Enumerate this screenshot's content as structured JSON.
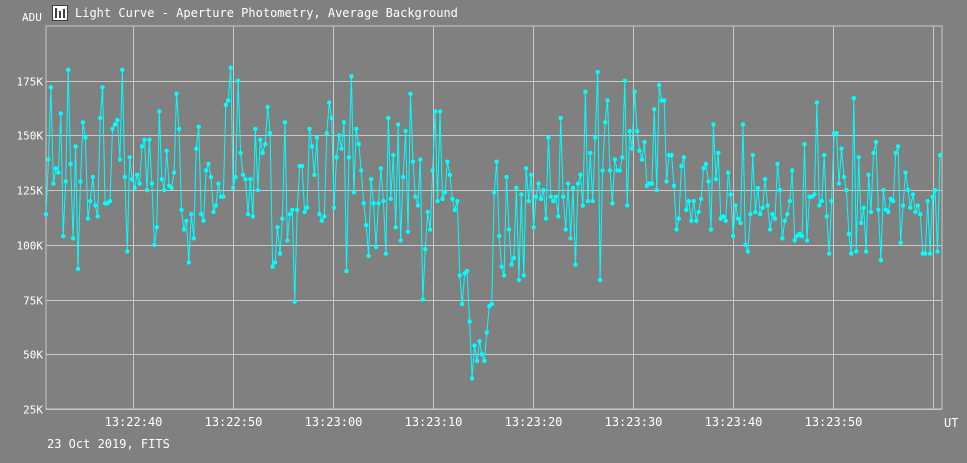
{
  "window": {
    "title": "Light Curve - Aperture Photometry, Average Background",
    "icon": "chart-app-icon"
  },
  "footer": {
    "text": "23 Oct 2019, FITS"
  },
  "colors": {
    "background": "#808080",
    "grid": "#c8c8c8",
    "series": "#00ffff",
    "text": "#ffffff"
  },
  "chart_data": {
    "type": "line",
    "title": "Light Curve - Aperture Photometry, Average Background",
    "xlabel": "UT",
    "ylabel": "ADU",
    "ylim": [
      25000,
      200000
    ],
    "grid": true,
    "legend": "none",
    "x_tick_labels": [
      "13:22:40",
      "13:22:50",
      "13:23:00",
      "13:23:10",
      "13:23:20",
      "13:23:30",
      "13:23:40",
      "13:23:50"
    ],
    "y_ticks": [
      25000,
      50000,
      75000,
      100000,
      125000,
      150000,
      175000
    ],
    "y_tick_labels": [
      "25K",
      "50K",
      "75K",
      "100K",
      "125K",
      "150K",
      "175K"
    ],
    "series": [
      {
        "name": "",
        "color": "#00ffff",
        "values": [
          114000,
          139000,
          172000,
          128000,
          135000,
          133000,
          160000,
          104000,
          129000,
          180000,
          137000,
          103000,
          145000,
          89000,
          129000,
          156000,
          149000,
          112000,
          120000,
          131000,
          118000,
          113000,
          158000,
          172000,
          119000,
          119000,
          120000,
          153000,
          155000,
          157000,
          139000,
          180000,
          131000,
          97000,
          140000,
          130000,
          126000,
          132000,
          128000,
          145000,
          148000,
          125000,
          148000,
          128000,
          100000,
          108000,
          161000,
          130000,
          125000,
          143000,
          127000,
          126000,
          133000,
          169000,
          153000,
          116000,
          107000,
          111000,
          92000,
          114000,
          103000,
          144000,
          154000,
          114000,
          111000,
          134000,
          137000,
          131000,
          115000,
          118000,
          128000,
          122000,
          122000,
          164000,
          166000,
          181000,
          126000,
          131000,
          175000,
          142000,
          132000,
          130000,
          114000,
          130000,
          113000,
          153000,
          125000,
          148000,
          142000,
          146000,
          163000,
          151000,
          90000,
          92000,
          108000,
          96000,
          112000,
          156000,
          102000,
          114000,
          116000,
          74000,
          116000,
          136000,
          136000,
          115000,
          117000,
          153000,
          145000,
          132000,
          149000,
          114000,
          111000,
          113000,
          151000,
          165000,
          158000,
          117000,
          140000,
          150000,
          144000,
          156000,
          88000,
          140000,
          177000,
          124000,
          153000,
          146000,
          134000,
          119000,
          109000,
          95000,
          130000,
          119000,
          99000,
          119000,
          135000,
          120000,
          96000,
          158000,
          121000,
          141000,
          108000,
          155000,
          102000,
          131000,
          152000,
          106000,
          169000,
          138000,
          122000,
          118000,
          139000,
          75000,
          98000,
          115000,
          107000,
          134000,
          161000,
          120000,
          161000,
          121000,
          124000,
          138000,
          132000,
          121000,
          116000,
          120000,
          86000,
          73000,
          87000,
          88000,
          65000,
          39000,
          54000,
          47000,
          56000,
          50000,
          47000,
          60000,
          72000,
          73000,
          124000,
          138000,
          104000,
          90000,
          86000,
          131000,
          107000,
          91000,
          94000,
          126000,
          84000,
          123000,
          86000,
          135000,
          120000,
          132000,
          108000,
          122000,
          128000,
          121000,
          125000,
          112000,
          149000,
          122000,
          120000,
          122000,
          113000,
          158000,
          122000,
          107000,
          128000,
          103000,
          126000,
          91000,
          128000,
          132000,
          118000,
          170000,
          120000,
          142000,
          120000,
          149000,
          179000,
          84000,
          134000,
          156000,
          166000,
          134000,
          119000,
          139000,
          134000,
          134000,
          140000,
          175000,
          118000,
          152000,
          144000,
          170000,
          152000,
          143000,
          139000,
          147000,
          127000,
          128000,
          128000,
          162000,
          125000,
          173000,
          166000,
          166000,
          129000,
          141000,
          141000,
          127000,
          107000,
          112000,
          136000,
          140000,
          116000,
          120000,
          111000,
          120000,
          111000,
          115000,
          121000,
          135000,
          137000,
          129000,
          107000,
          155000,
          130000,
          142000,
          112000,
          113000,
          111000,
          133000,
          123000,
          104000,
          118000,
          112000,
          110000,
          155000,
          100000,
          97000,
          114000,
          141000,
          115000,
          126000,
          114000,
          117000,
          130000,
          118000,
          107000,
          114000,
          112000,
          137000,
          125000,
          103000,
          111000,
          114000,
          120000,
          134000,
          102000,
          104000,
          105000,
          104000,
          146000,
          102000,
          122000,
          122000,
          123000,
          165000,
          118000,
          120000,
          141000,
          113000,
          96000,
          120000,
          151000,
          151000,
          128000,
          144000,
          131000,
          125000,
          105000,
          96000,
          167000,
          97000,
          140000,
          110000,
          117000,
          97000,
          132000,
          115000,
          142000,
          147000,
          116000,
          93000,
          125000,
          116000,
          115000,
          121000,
          120000,
          142000,
          145000,
          101000,
          118000,
          133000,
          125000,
          117000,
          123000,
          115000,
          118000,
          114000,
          96000,
          96000,
          120000,
          96000,
          122000,
          125000,
          97000,
          141000
        ]
      }
    ]
  }
}
